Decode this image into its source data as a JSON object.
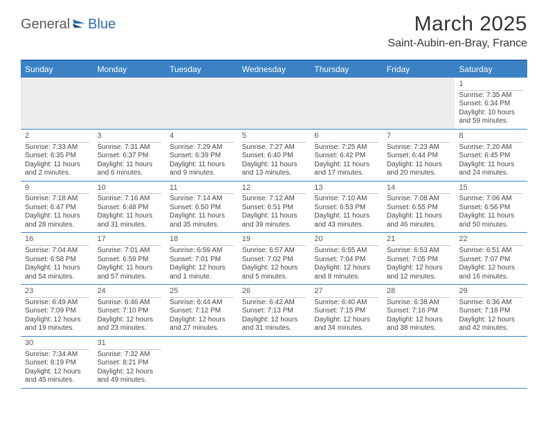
{
  "brand": {
    "part1": "General",
    "part2": "Blue"
  },
  "title": "March 2025",
  "location": "Saint-Aubin-en-Bray, France",
  "colors": {
    "header_bg": "#3b82c4",
    "border": "#2a6cb0",
    "empty_bg": "#ededed",
    "daynum_border": "#c9c9c9",
    "text": "#444444"
  },
  "day_labels": [
    "Sunday",
    "Monday",
    "Tuesday",
    "Wednesday",
    "Thursday",
    "Friday",
    "Saturday"
  ],
  "weeks": [
    [
      null,
      null,
      null,
      null,
      null,
      null,
      {
        "n": "1",
        "sunrise": "7:35 AM",
        "sunset": "6:34 PM",
        "daylight": "10 hours and 59 minutes."
      }
    ],
    [
      {
        "n": "2",
        "sunrise": "7:33 AM",
        "sunset": "6:35 PM",
        "daylight": "11 hours and 2 minutes."
      },
      {
        "n": "3",
        "sunrise": "7:31 AM",
        "sunset": "6:37 PM",
        "daylight": "11 hours and 6 minutes."
      },
      {
        "n": "4",
        "sunrise": "7:29 AM",
        "sunset": "6:39 PM",
        "daylight": "11 hours and 9 minutes."
      },
      {
        "n": "5",
        "sunrise": "7:27 AM",
        "sunset": "6:40 PM",
        "daylight": "11 hours and 13 minutes."
      },
      {
        "n": "6",
        "sunrise": "7:25 AM",
        "sunset": "6:42 PM",
        "daylight": "11 hours and 17 minutes."
      },
      {
        "n": "7",
        "sunrise": "7:23 AM",
        "sunset": "6:44 PM",
        "daylight": "11 hours and 20 minutes."
      },
      {
        "n": "8",
        "sunrise": "7:20 AM",
        "sunset": "6:45 PM",
        "daylight": "11 hours and 24 minutes."
      }
    ],
    [
      {
        "n": "9",
        "sunrise": "7:18 AM",
        "sunset": "6:47 PM",
        "daylight": "11 hours and 28 minutes."
      },
      {
        "n": "10",
        "sunrise": "7:16 AM",
        "sunset": "6:48 PM",
        "daylight": "11 hours and 31 minutes."
      },
      {
        "n": "11",
        "sunrise": "7:14 AM",
        "sunset": "6:50 PM",
        "daylight": "11 hours and 35 minutes."
      },
      {
        "n": "12",
        "sunrise": "7:12 AM",
        "sunset": "6:51 PM",
        "daylight": "11 hours and 39 minutes."
      },
      {
        "n": "13",
        "sunrise": "7:10 AM",
        "sunset": "6:53 PM",
        "daylight": "11 hours and 43 minutes."
      },
      {
        "n": "14",
        "sunrise": "7:08 AM",
        "sunset": "6:55 PM",
        "daylight": "11 hours and 46 minutes."
      },
      {
        "n": "15",
        "sunrise": "7:06 AM",
        "sunset": "6:56 PM",
        "daylight": "11 hours and 50 minutes."
      }
    ],
    [
      {
        "n": "16",
        "sunrise": "7:04 AM",
        "sunset": "6:58 PM",
        "daylight": "11 hours and 54 minutes."
      },
      {
        "n": "17",
        "sunrise": "7:01 AM",
        "sunset": "6:59 PM",
        "daylight": "11 hours and 57 minutes."
      },
      {
        "n": "18",
        "sunrise": "6:59 AM",
        "sunset": "7:01 PM",
        "daylight": "12 hours and 1 minute."
      },
      {
        "n": "19",
        "sunrise": "6:57 AM",
        "sunset": "7:02 PM",
        "daylight": "12 hours and 5 minutes."
      },
      {
        "n": "20",
        "sunrise": "6:55 AM",
        "sunset": "7:04 PM",
        "daylight": "12 hours and 8 minutes."
      },
      {
        "n": "21",
        "sunrise": "6:53 AM",
        "sunset": "7:05 PM",
        "daylight": "12 hours and 12 minutes."
      },
      {
        "n": "22",
        "sunrise": "6:51 AM",
        "sunset": "7:07 PM",
        "daylight": "12 hours and 16 minutes."
      }
    ],
    [
      {
        "n": "23",
        "sunrise": "6:49 AM",
        "sunset": "7:09 PM",
        "daylight": "12 hours and 19 minutes."
      },
      {
        "n": "24",
        "sunrise": "6:46 AM",
        "sunset": "7:10 PM",
        "daylight": "12 hours and 23 minutes."
      },
      {
        "n": "25",
        "sunrise": "6:44 AM",
        "sunset": "7:12 PM",
        "daylight": "12 hours and 27 minutes."
      },
      {
        "n": "26",
        "sunrise": "6:42 AM",
        "sunset": "7:13 PM",
        "daylight": "12 hours and 31 minutes."
      },
      {
        "n": "27",
        "sunrise": "6:40 AM",
        "sunset": "7:15 PM",
        "daylight": "12 hours and 34 minutes."
      },
      {
        "n": "28",
        "sunrise": "6:38 AM",
        "sunset": "7:16 PM",
        "daylight": "12 hours and 38 minutes."
      },
      {
        "n": "29",
        "sunrise": "6:36 AM",
        "sunset": "7:18 PM",
        "daylight": "12 hours and 42 minutes."
      }
    ],
    [
      {
        "n": "30",
        "sunrise": "7:34 AM",
        "sunset": "8:19 PM",
        "daylight": "12 hours and 45 minutes."
      },
      {
        "n": "31",
        "sunrise": "7:32 AM",
        "sunset": "8:21 PM",
        "daylight": "12 hours and 49 minutes."
      },
      null,
      null,
      null,
      null,
      null
    ]
  ],
  "labels": {
    "sunrise": "Sunrise:",
    "sunset": "Sunset:",
    "daylight": "Daylight:"
  }
}
